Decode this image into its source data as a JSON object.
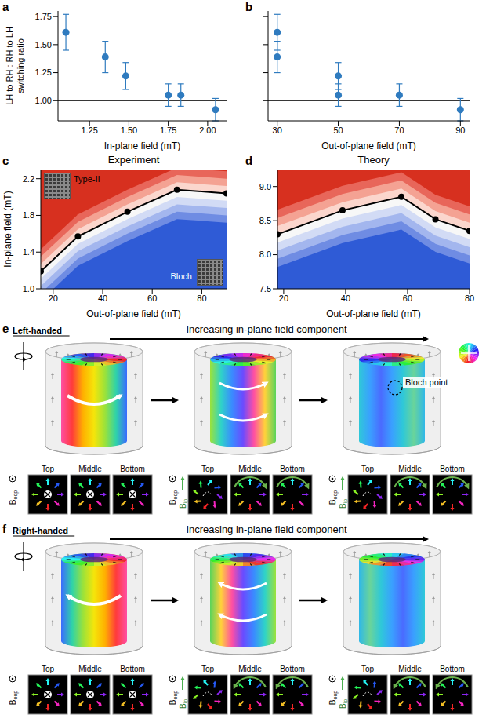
{
  "chart_data": [
    {
      "panel": "a",
      "type": "scatter",
      "xlabel": "In-plane field (mT)",
      "ylabel": [
        "LH to RH : RH to LH",
        "switching ratio"
      ],
      "x": [
        1.1,
        1.35,
        1.48,
        1.75,
        1.83,
        2.05
      ],
      "values": [
        1.61,
        1.39,
        1.22,
        1.05,
        1.05,
        0.92
      ],
      "errors": [
        0.16,
        0.14,
        0.12,
        0.1,
        0.1,
        0.1
      ],
      "color": "#2f7bbf",
      "marker": "circle",
      "hline": 1,
      "xlim": [
        1.05,
        2.12
      ],
      "xticks": [
        1.25,
        {
          "value": 1.5,
          "label": "1.50"
        },
        1.75,
        {
          "value": 2,
          "label": "2.00"
        }
      ],
      "ylim": [
        0.82,
        1.8
      ],
      "yticks": [
        {
          "value": 1,
          "label": "1.00"
        },
        1.25,
        {
          "value": 1.5,
          "label": "1.50"
        },
        1.75
      ]
    },
    {
      "panel": "b",
      "type": "scatter",
      "xlabel": "Out-of-plane field (mT)",
      "x": [
        30,
        30,
        50,
        50,
        70,
        90
      ],
      "values": [
        1.61,
        1.39,
        1.22,
        1.05,
        1.05,
        0.92
      ],
      "errors": [
        0.16,
        0.14,
        0.12,
        0.1,
        0.1,
        0.1
      ],
      "color": "#2f7bbf",
      "marker": "circle",
      "hline": 1,
      "xlim": [
        27,
        93
      ],
      "xticks": [
        30,
        50,
        70,
        90
      ],
      "ylim": [
        0.82,
        1.8
      ],
      "yticks": [
        1,
        1.25,
        1.5,
        1.75
      ],
      "tick_labels": "x"
    },
    {
      "panel": "c",
      "type": "contour",
      "title": "Experiment",
      "xlabel": "Out-of-plane field (mT)",
      "ylabel": "In-plane field (mT)",
      "annotations": [
        "Type-II",
        "Bloch"
      ],
      "color": "#d7301f",
      "x": [
        15,
        30,
        50,
        70,
        90
      ],
      "line": {
        "color": "#000000",
        "marker": "circle",
        "values": [
          1.19,
          1.57,
          1.84,
          2.08,
          2.04
        ]
      },
      "contours": [
        {
          "color": "#e8665a",
          "values": [
            1.43,
            1.81,
            2.08,
            2.32,
            2.28
          ]
        },
        {
          "color": "#f4a293",
          "values": [
            1.35,
            1.73,
            2.0,
            2.24,
            2.2
          ]
        },
        {
          "color": "#fbd6cd",
          "values": [
            1.27,
            1.65,
            1.92,
            2.16,
            2.12
          ]
        },
        {
          "color": "#f7f7f7",
          "values": [
            1.19,
            1.57,
            1.84,
            2.08,
            2.04
          ]
        },
        {
          "color": "#d2dbf5",
          "values": [
            1.11,
            1.49,
            1.76,
            2.0,
            1.96
          ]
        },
        {
          "color": "#a3b6ee",
          "values": [
            1.03,
            1.41,
            1.68,
            1.92,
            1.88
          ]
        },
        {
          "color": "#6f8ce3",
          "values": [
            0.95,
            1.33,
            1.6,
            1.84,
            1.8
          ]
        },
        {
          "color": "#2f5bd6",
          "values": [
            0.87,
            1.25,
            1.52,
            1.76,
            1.72
          ]
        }
      ],
      "xlim": [
        15,
        90
      ],
      "xticks": [
        20,
        40,
        60,
        80
      ],
      "ylim": [
        1.0,
        2.3
      ],
      "yticks": [
        {
          "value": 1,
          "label": "1.0"
        },
        1.4,
        1.8,
        2.2
      ]
    },
    {
      "panel": "d",
      "type": "contour",
      "title": "Theory",
      "xlabel": "Out-of-plane field (mT)",
      "color": "#d7301f",
      "x": [
        18,
        39,
        58,
        69,
        80
      ],
      "line": {
        "color": "#000000",
        "marker": "circle",
        "values": [
          8.3,
          8.65,
          8.85,
          8.52,
          8.35
        ]
      },
      "contours": [
        {
          "color": "#e8665a",
          "values": [
            8.66,
            9.01,
            9.21,
            8.88,
            8.71
          ]
        },
        {
          "color": "#f4a293",
          "values": [
            8.54,
            8.89,
            9.09,
            8.76,
            8.59
          ]
        },
        {
          "color": "#fbd6cd",
          "values": [
            8.42,
            8.77,
            8.97,
            8.64,
            8.47
          ]
        },
        {
          "color": "#f7f7f7",
          "values": [
            8.3,
            8.65,
            8.85,
            8.52,
            8.35
          ]
        },
        {
          "color": "#d2dbf5",
          "values": [
            8.18,
            8.53,
            8.73,
            8.4,
            8.23
          ]
        },
        {
          "color": "#a3b6ee",
          "values": [
            8.06,
            8.41,
            8.61,
            8.28,
            8.11
          ]
        },
        {
          "color": "#6f8ce3",
          "values": [
            7.94,
            8.29,
            8.49,
            8.16,
            7.99
          ]
        },
        {
          "color": "#2f5bd6",
          "values": [
            7.82,
            8.17,
            8.37,
            8.04,
            7.87
          ]
        }
      ],
      "xlim": [
        18,
        80
      ],
      "xticks": [
        20,
        40,
        60,
        80
      ],
      "ylim": [
        7.5,
        9.25
      ],
      "yticks": [
        7.5,
        {
          "value": 8,
          "label": "8.0"
        },
        8.5,
        {
          "value": 9,
          "label": "9.0"
        }
      ]
    }
  ],
  "diagrams": [
    {
      "panel": "e",
      "title": "Left-handed",
      "arrow_label": "Increasing in-plane field component",
      "annotation": "Bloch point",
      "slice_labels": [
        "Top",
        "Middle",
        "Bottom"
      ],
      "field_oop": {
        "symbol": "B",
        "subscript": "oop"
      },
      "field_ip": {
        "symbol": "B",
        "subscript": "ip"
      }
    },
    {
      "panel": "f",
      "title": "Right-handed",
      "arrow_label": "Increasing in-plane field component",
      "slice_labels": [
        "Top",
        "Middle",
        "Bottom"
      ],
      "field_oop": {
        "symbol": "B",
        "subscript": "oop"
      },
      "field_ip": {
        "symbol": "B",
        "subscript": "ip"
      }
    }
  ]
}
